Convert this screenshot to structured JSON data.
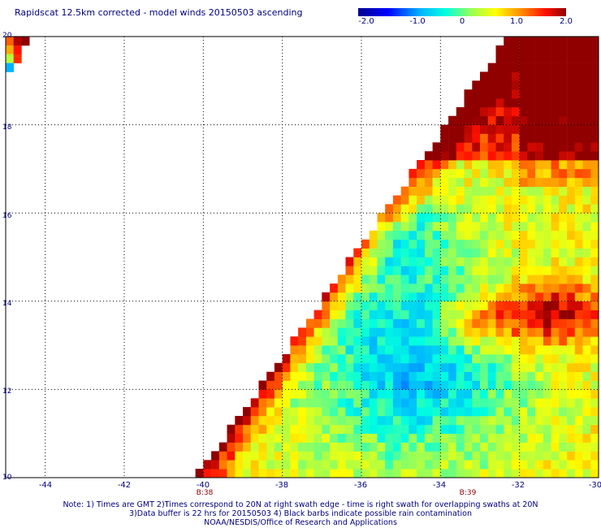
{
  "title": "Rapidscat 12.5km corrected - model winds 20150503 ascending",
  "colorbar": {
    "labels": [
      "-2.0",
      "-1.0",
      "0",
      "1.0",
      "2.0"
    ],
    "min": -2.0,
    "max": 2.0,
    "colors": [
      "#00008b",
      "#0000ff",
      "#00c8ff",
      "#40ffc0",
      "#ffff00",
      "#ff8000",
      "#ff0000",
      "#8b0000"
    ]
  },
  "map": {
    "lon_min": -45,
    "lon_max": -30,
    "lat_min": 10,
    "lat_max": 20,
    "x_ticks": [
      "-44",
      "-42",
      "-40",
      "-38",
      "-36",
      "-34",
      "-32",
      "-30"
    ],
    "y_ticks": [
      "20",
      "18",
      "16",
      "14",
      "12",
      "10"
    ],
    "time_labels": [
      {
        "lon": -40,
        "text": "B:38"
      },
      {
        "lon": -33.4,
        "text": "B:39"
      }
    ]
  },
  "notes": [
    "Note: 1) Times are GMT 2)Times correspond to 20N at right swath edge - time is right swath for overlapping swaths at 20N",
    "3)Data buffer is 22 hrs for 20150503 4) Black barbs indicate possible rain contamination",
    "NOAA/NESDIS/Office of Research and Applications"
  ]
}
